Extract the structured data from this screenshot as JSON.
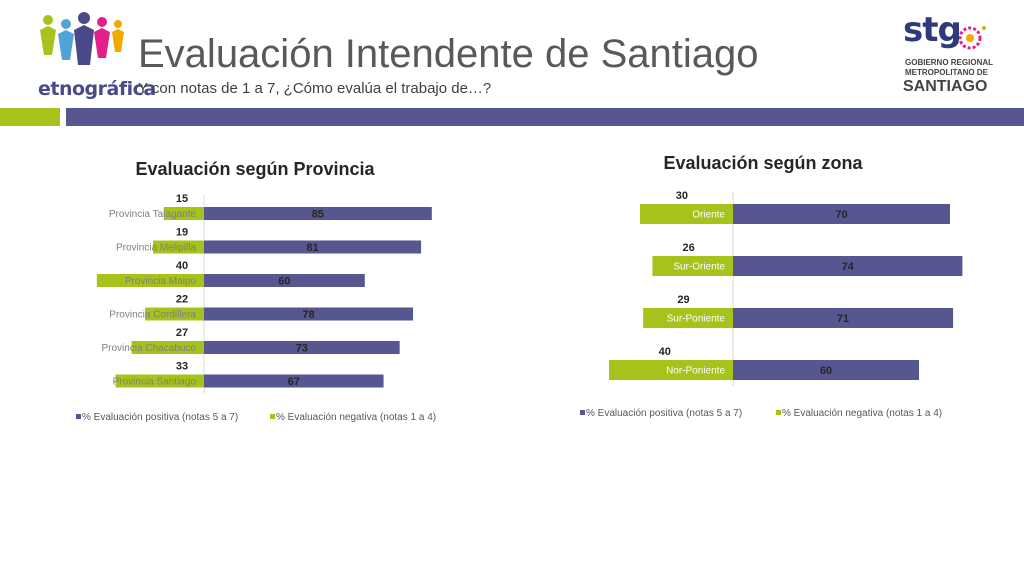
{
  "header": {
    "title": "Evaluación Intendente de Santiago",
    "subtitle": "Y con notas de 1 a 7, ¿Cómo evalúa el trabajo de…?",
    "logo_left_text": "etnográfica",
    "logo_right_word": "stg",
    "logo_right_line1": "GOBIERNO REGIONAL",
    "logo_right_line2": "METROPOLITANO DE",
    "logo_right_line3": "SANTIAGO"
  },
  "colors": {
    "positive": "#565690",
    "negative": "#a5c31a",
    "accent_green": "#a5c31a",
    "accent_blue": "#565690"
  },
  "chart_data": [
    {
      "type": "bar",
      "orientation": "horizontal",
      "stacked": "diverging",
      "title": "Evaluación según Provincia",
      "categories": [
        "Provincia Talagante",
        "Provincia Melipilla",
        "Provincia Maipo",
        "Provincia Cordillera",
        "Provincia Chacabuco",
        "Provincia Santiago"
      ],
      "series": [
        {
          "name": "% Evaluación positiva (notas 5 a 7)",
          "values": [
            85,
            81,
            60,
            78,
            73,
            67
          ]
        },
        {
          "name": "% Evaluación negativa (notas 1 a 4)",
          "values": [
            15,
            19,
            40,
            22,
            27,
            33
          ]
        }
      ],
      "legend": "bottom",
      "grid": false
    },
    {
      "type": "bar",
      "orientation": "horizontal",
      "stacked": "diverging",
      "title": "Evaluación según zona",
      "categories": [
        "Oriente",
        "Sur-Oriente",
        "Sur-Poniente",
        "Nor-Poniente"
      ],
      "series": [
        {
          "name": "% Evaluación positiva (notas 5 a 7)",
          "values": [
            70,
            74,
            71,
            60
          ]
        },
        {
          "name": "% Evaluación negativa (notas 1 a 4)",
          "values": [
            30,
            26,
            29,
            40
          ]
        }
      ],
      "legend": "bottom",
      "grid": false
    }
  ]
}
